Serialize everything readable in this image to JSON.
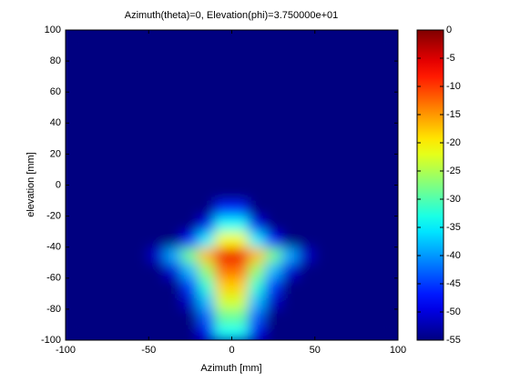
{
  "chart_data": {
    "type": "heatmap",
    "title": "Azimuth(theta)=0, Elevation(phi)=3.750000e+01",
    "xlabel": "Azimuth [mm]",
    "ylabel": "elevation [mm]",
    "colormap": "jet",
    "x": [
      -95,
      -85,
      -75,
      -65,
      -55,
      -45,
      -35,
      -25,
      -15,
      -5,
      5,
      15,
      25,
      35,
      45,
      55,
      65,
      75,
      85,
      95
    ],
    "y": [
      -95,
      -85,
      -75,
      -65,
      -55,
      -45,
      -35,
      -25,
      -15,
      -5,
      5,
      15,
      25,
      35,
      45,
      55,
      65,
      75,
      85,
      95
    ],
    "z": [
      [
        -55,
        -55,
        -55,
        -55,
        -55,
        -55,
        -55,
        -55,
        -49,
        -34,
        -34,
        -49,
        -55,
        -55,
        -55,
        -55,
        -55,
        -55,
        -55,
        -55
      ],
      [
        -55,
        -55,
        -55,
        -55,
        -55,
        -55,
        -55,
        -55,
        -43,
        -29,
        -29,
        -43,
        -55,
        -55,
        -55,
        -55,
        -55,
        -55,
        -55,
        -55
      ],
      [
        -55,
        -55,
        -55,
        -55,
        -55,
        -55,
        -55,
        -51,
        -38,
        -23,
        -23,
        -38,
        -51,
        -55,
        -55,
        -55,
        -55,
        -55,
        -55,
        -55
      ],
      [
        -55,
        -55,
        -55,
        -55,
        -55,
        -55,
        -55,
        -45,
        -32,
        -18,
        -18,
        -32,
        -45,
        -55,
        -55,
        -55,
        -55,
        -55,
        -55,
        -55
      ],
      [
        -55,
        -55,
        -55,
        -55,
        -55,
        -55,
        -50,
        -38,
        -26,
        -13,
        -13,
        -26,
        -38,
        -50,
        -55,
        -55,
        -55,
        -55,
        -55,
        -55
      ],
      [
        -55,
        -55,
        -55,
        -55,
        -55,
        -51,
        -39,
        -28,
        -17,
        -6,
        -6,
        -17,
        -28,
        -39,
        -51,
        -55,
        -55,
        -55,
        -55,
        -55
      ],
      [
        -55,
        -55,
        -55,
        -55,
        -55,
        -55,
        -55,
        -48,
        -35,
        -21,
        -21,
        -35,
        -48,
        -55,
        -55,
        -55,
        -55,
        -55,
        -55,
        -55
      ],
      [
        -55,
        -55,
        -55,
        -55,
        -55,
        -55,
        -55,
        -55,
        -49,
        -34,
        -34,
        -49,
        -55,
        -55,
        -55,
        -55,
        -55,
        -55,
        -55,
        -55
      ],
      [
        -55,
        -55,
        -55,
        -55,
        -55,
        -55,
        -55,
        -55,
        -55,
        -46,
        -46,
        -55,
        -55,
        -55,
        -55,
        -55,
        -55,
        -55,
        -55,
        -55
      ],
      [
        -55,
        -55,
        -55,
        -55,
        -55,
        -55,
        -55,
        -55,
        -55,
        -55,
        -55,
        -55,
        -55,
        -55,
        -55,
        -55,
        -55,
        -55,
        -55,
        -55
      ],
      [
        -55,
        -55,
        -55,
        -55,
        -55,
        -55,
        -55,
        -55,
        -55,
        -55,
        -55,
        -55,
        -55,
        -55,
        -55,
        -55,
        -55,
        -55,
        -55,
        -55
      ],
      [
        -55,
        -55,
        -55,
        -55,
        -55,
        -55,
        -55,
        -55,
        -55,
        -55,
        -55,
        -55,
        -55,
        -55,
        -55,
        -55,
        -55,
        -55,
        -55,
        -55
      ],
      [
        -55,
        -55,
        -55,
        -55,
        -55,
        -55,
        -55,
        -55,
        -55,
        -55,
        -55,
        -55,
        -55,
        -55,
        -55,
        -55,
        -55,
        -55,
        -55,
        -55
      ],
      [
        -55,
        -55,
        -55,
        -55,
        -55,
        -55,
        -55,
        -55,
        -55,
        -55,
        -55,
        -55,
        -55,
        -55,
        -55,
        -55,
        -55,
        -55,
        -55,
        -55
      ],
      [
        -55,
        -55,
        -55,
        -55,
        -55,
        -55,
        -55,
        -55,
        -55,
        -55,
        -55,
        -55,
        -55,
        -55,
        -55,
        -55,
        -55,
        -55,
        -55,
        -55
      ],
      [
        -55,
        -55,
        -55,
        -55,
        -55,
        -55,
        -55,
        -55,
        -55,
        -55,
        -55,
        -55,
        -55,
        -55,
        -55,
        -55,
        -55,
        -55,
        -55,
        -55
      ],
      [
        -55,
        -55,
        -55,
        -55,
        -55,
        -55,
        -55,
        -55,
        -55,
        -55,
        -55,
        -55,
        -55,
        -55,
        -55,
        -55,
        -55,
        -55,
        -55,
        -55
      ],
      [
        -55,
        -55,
        -55,
        -55,
        -55,
        -55,
        -55,
        -55,
        -55,
        -55,
        -55,
        -55,
        -55,
        -55,
        -55,
        -55,
        -55,
        -55,
        -55,
        -55
      ],
      [
        -55,
        -55,
        -55,
        -55,
        -55,
        -55,
        -55,
        -55,
        -55,
        -55,
        -55,
        -55,
        -55,
        -55,
        -55,
        -55,
        -55,
        -55,
        -55,
        -55
      ],
      [
        -55,
        -55,
        -55,
        -55,
        -55,
        -55,
        -55,
        -55,
        -55,
        -55,
        -55,
        -55,
        -55,
        -55,
        -55,
        -55,
        -55,
        -55,
        -55,
        -55
      ]
    ],
    "xlim": [
      -100,
      100
    ],
    "xticks": [
      -100,
      -50,
      0,
      50,
      100
    ],
    "ylim": [
      -100,
      100
    ],
    "yticks": [
      -100,
      -80,
      -60,
      -40,
      -20,
      0,
      20,
      40,
      60,
      80,
      100
    ],
    "zlim": [
      -55,
      0
    ],
    "zticks": [
      0,
      -5,
      -10,
      -15,
      -20,
      -25,
      -30,
      -35,
      -40,
      -45,
      -50,
      -55
    ]
  }
}
